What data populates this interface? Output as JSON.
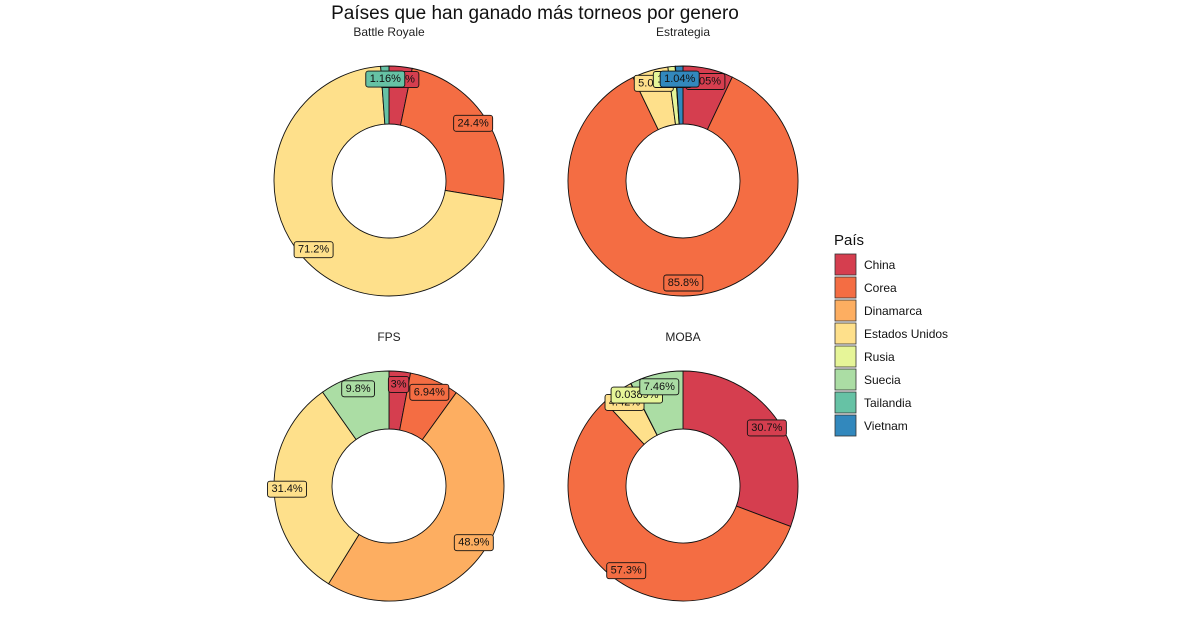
{
  "chart_data": {
    "type": "donut",
    "title": "Países que han ganado más torneos por genero",
    "legend": {
      "title": "País",
      "placement": "right",
      "entries": [
        {
          "name": "China",
          "color": "#D53E4F"
        },
        {
          "name": "Corea",
          "color": "#F46D43"
        },
        {
          "name": "Dinamarca",
          "color": "#FDAE61"
        },
        {
          "name": "Estados Unidos",
          "color": "#FEE08B"
        },
        {
          "name": "Rusia",
          "color": "#E6F598"
        },
        {
          "name": "Suecia",
          "color": "#ABDDA4"
        },
        {
          "name": "Tailandia",
          "color": "#66C2A5"
        },
        {
          "name": "Vietnam",
          "color": "#3288BD"
        }
      ]
    },
    "panels": [
      {
        "title": "Battle Royale",
        "slices": [
          {
            "country": "China",
            "value": 3.24,
            "label": "3.24%"
          },
          {
            "country": "Corea",
            "value": 24.4,
            "label": "24.4%"
          },
          {
            "country": "Estados Unidos",
            "value": 71.2,
            "label": "71.2%"
          },
          {
            "country": "Tailandia",
            "value": 1.16,
            "label": "1.16%"
          }
        ]
      },
      {
        "title": "Estrategia",
        "slices": [
          {
            "country": "China",
            "value": 7.05,
            "label": "7.05%"
          },
          {
            "country": "Corea",
            "value": 85.8,
            "label": "85.8%"
          },
          {
            "country": "Estados Unidos",
            "value": 5.05,
            "label": "5.05%"
          },
          {
            "country": "Rusia",
            "value": 1.01,
            "label": "1.01%"
          },
          {
            "country": "Tailandia",
            "value": 0.05,
            "label": ""
          },
          {
            "country": "Vietnam",
            "value": 1.04,
            "label": "1.04%"
          }
        ]
      },
      {
        "title": "FPS",
        "slices": [
          {
            "country": "China",
            "value": 3,
            "label": "3%"
          },
          {
            "country": "Corea",
            "value": 6.94,
            "label": "6.94%"
          },
          {
            "country": "Dinamarca",
            "value": 48.9,
            "label": "48.9%"
          },
          {
            "country": "Estados Unidos",
            "value": 31.4,
            "label": "31.4%"
          },
          {
            "country": "Suecia",
            "value": 9.8,
            "label": "9.8%"
          }
        ]
      },
      {
        "title": "MOBA",
        "slices": [
          {
            "country": "China",
            "value": 30.7,
            "label": "30.7%"
          },
          {
            "country": "Corea",
            "value": 57.3,
            "label": "57.3%"
          },
          {
            "country": "Estados Unidos",
            "value": 4.42,
            "label": "4.42%"
          },
          {
            "country": "Rusia",
            "value": 0.0389,
            "label": "0.0389%"
          },
          {
            "country": "Suecia",
            "value": 7.46,
            "label": "7.46%"
          }
        ]
      }
    ]
  }
}
